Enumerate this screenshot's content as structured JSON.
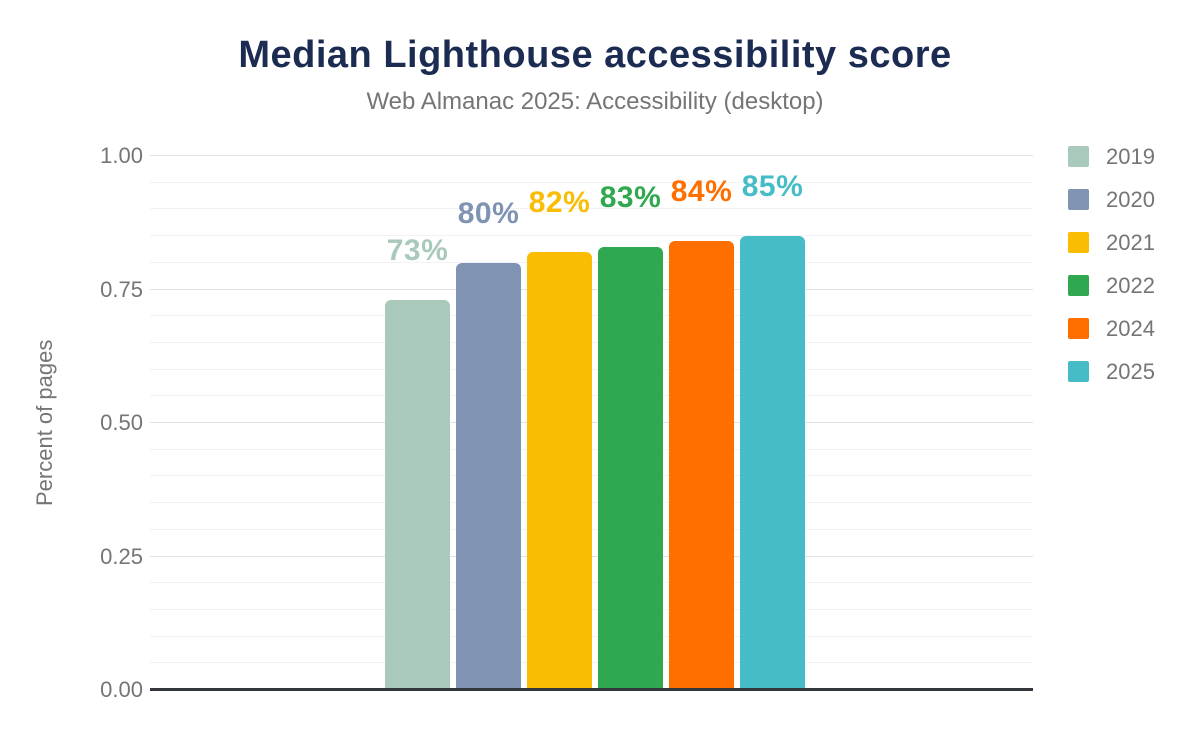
{
  "chart_data": {
    "type": "bar",
    "title": "Median Lighthouse accessibility score",
    "subtitle": "Web Almanac 2025: Accessibility (desktop)",
    "ylabel": "Percent of pages",
    "xlabel": "",
    "ylim": [
      0,
      1
    ],
    "yticks": [
      "0.00",
      "0.25",
      "0.50",
      "0.75",
      "1.00"
    ],
    "ytick_values": [
      0,
      0.25,
      0.5,
      0.75,
      1.0
    ],
    "minor_grid_step": 0.05,
    "grid": true,
    "legend_position": "top-right",
    "categories": [
      "2019",
      "2020",
      "2021",
      "2022",
      "2024",
      "2025"
    ],
    "series": [
      {
        "name": "2019",
        "value": 0.73,
        "label": "73%",
        "color": "#a9cabb"
      },
      {
        "name": "2020",
        "value": 0.8,
        "label": "80%",
        "color": "#8093b2"
      },
      {
        "name": "2021",
        "value": 0.82,
        "label": "82%",
        "color": "#fbbc04"
      },
      {
        "name": "2022",
        "value": 0.83,
        "label": "83%",
        "color": "#2fa84f"
      },
      {
        "name": "2024",
        "value": 0.84,
        "label": "84%",
        "color": "#ff6f00"
      },
      {
        "name": "2025",
        "value": 0.85,
        "label": "85%",
        "color": "#46bdc6"
      }
    ],
    "colors": {
      "title_text": "#1c2b52",
      "subtitle_text": "#757575",
      "axis_text": "#757575",
      "axis_line": "#33363b",
      "grid_major": "#e2e2e6",
      "grid_minor": "#f2f2f4",
      "background": "#ffffff"
    }
  }
}
